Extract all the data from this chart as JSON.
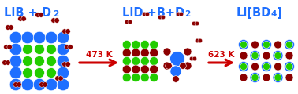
{
  "blue": "#1E6FFF",
  "green": "#22CC00",
  "darkred": "#8B0000",
  "red_arrow": "#CC0000",
  "bg": "#ffffff",
  "label1": "LiB + D",
  "label1_sub": "2",
  "label2": "LiD +B+D",
  "label2_sub": "2",
  "label3": "Li[BD",
  "label3_sub": "4",
  "label3_end": "]",
  "arrow1_label": "473 K",
  "arrow2_label": "623 K",
  "fig_w": 3.78,
  "fig_h": 1.2,
  "dpi": 100
}
